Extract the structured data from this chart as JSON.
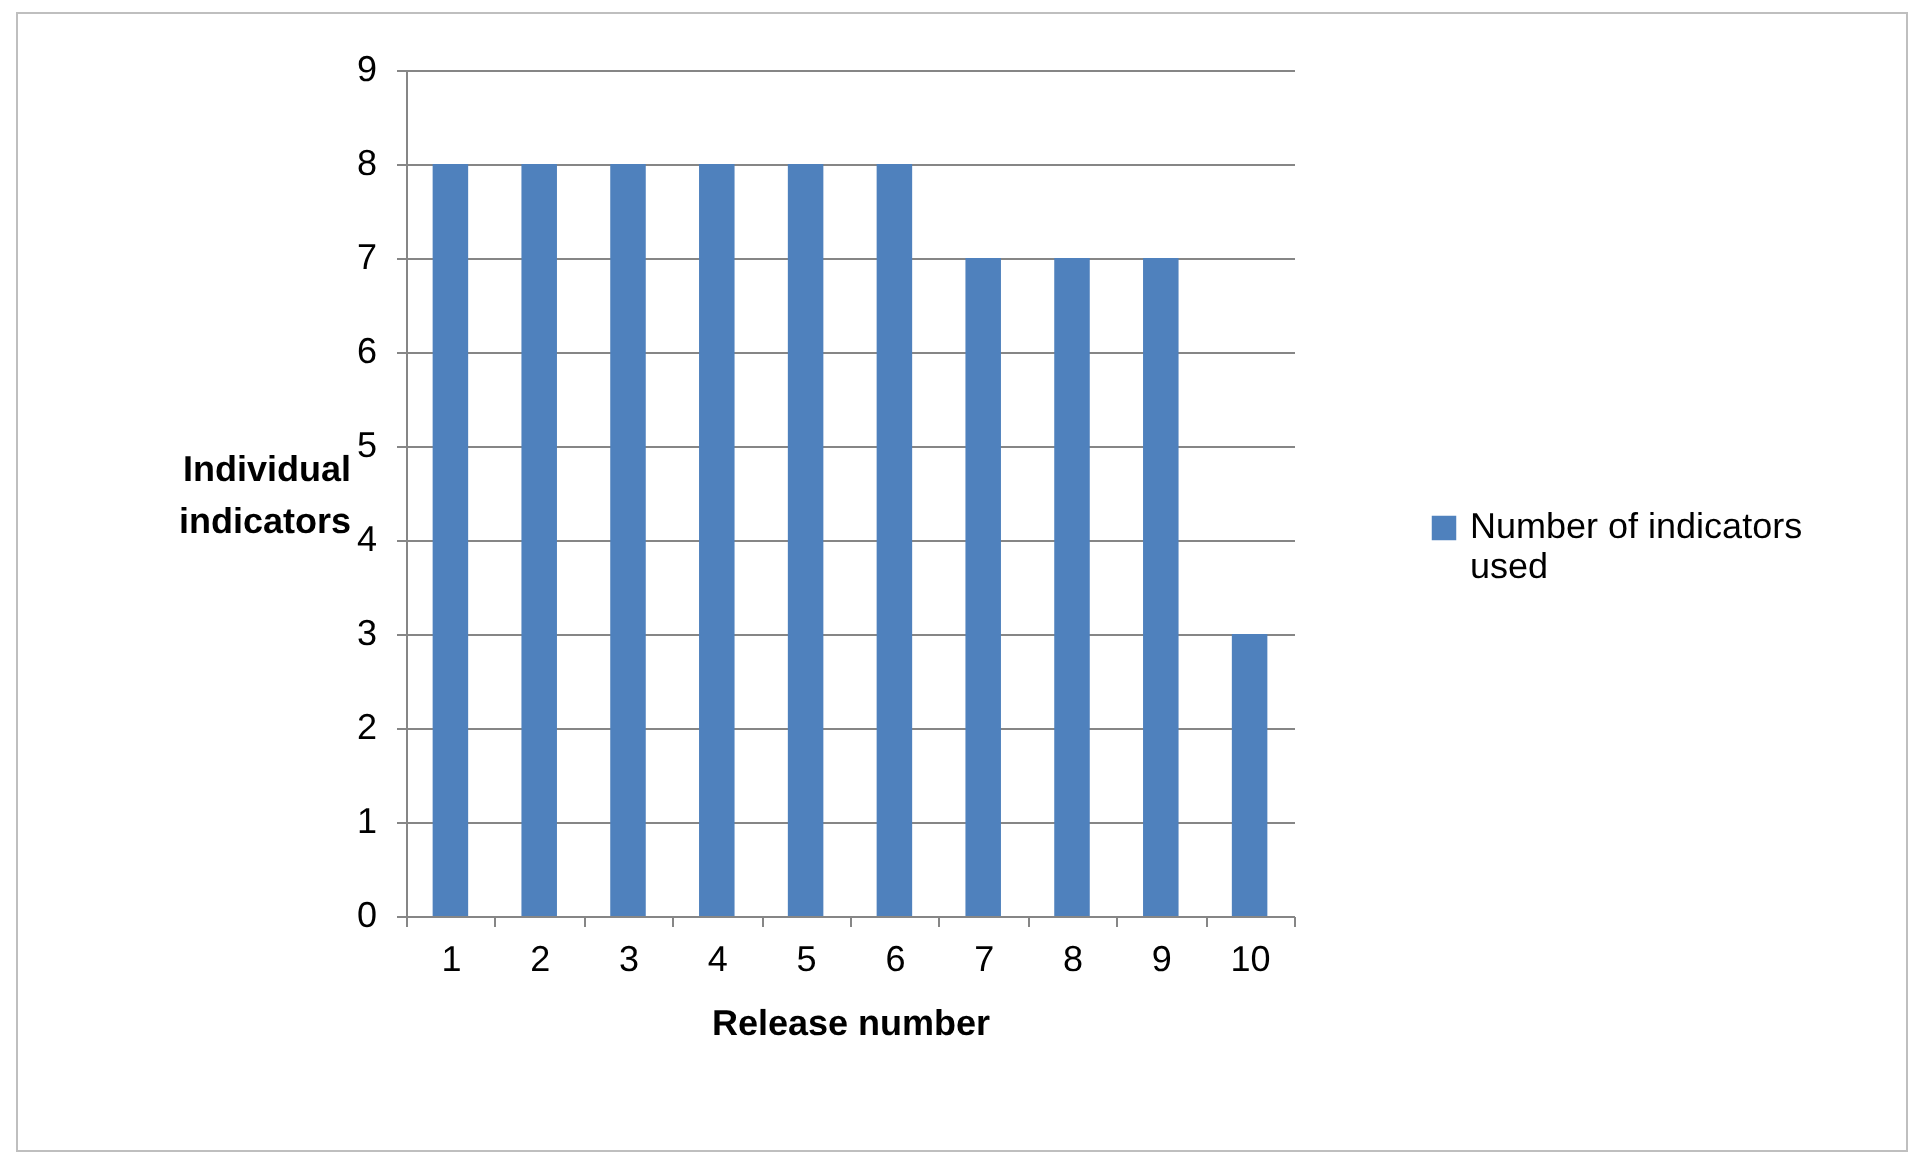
{
  "chart_data": {
    "type": "bar",
    "xlabel": "Release number",
    "ylabel": "Individual indicators",
    "categories": [
      "1",
      "2",
      "3",
      "4",
      "5",
      "6",
      "7",
      "8",
      "9",
      "10"
    ],
    "series": [
      {
        "name": "Number of indicators used",
        "color": "#4f81bd",
        "values": [
          8,
          8,
          8,
          8,
          8,
          8,
          7,
          7,
          7,
          3
        ]
      }
    ],
    "ylim": [
      0,
      9
    ],
    "yticks": [
      0,
      1,
      2,
      3,
      4,
      5,
      6,
      7,
      8,
      9
    ],
    "grid": "y",
    "legend": "right"
  }
}
